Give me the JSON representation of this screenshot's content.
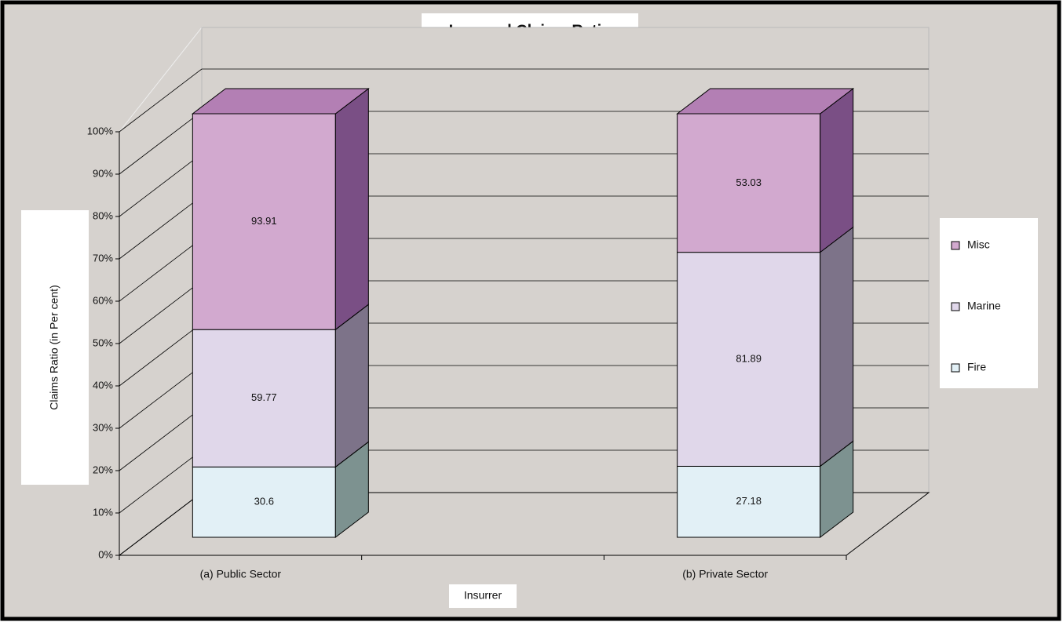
{
  "chart_data": {
    "type": "bar",
    "stacked_percent": true,
    "title": "Incurred Claims Ratio",
    "x_label": "Insurrer",
    "y_label": "Claims Ratio (in Per cent)",
    "categories": [
      "(a) Public Sector",
      null,
      "(b) Private Sector"
    ],
    "series": [
      {
        "name": "Fire",
        "color": "#e2f0f6",
        "side": "#7d9290",
        "values": [
          30.6,
          null,
          27.18
        ]
      },
      {
        "name": "Marine",
        "color": "#e0d7ea",
        "side": "#7d7389",
        "values": [
          59.77,
          null,
          81.89
        ]
      },
      {
        "name": "Misc",
        "color": "#d2a9cf",
        "side": "#7a4f85",
        "top": "#b37fb4",
        "values": [
          93.91,
          null,
          53.03
        ]
      }
    ],
    "ylim": [
      0,
      100
    ],
    "yticks": [
      {
        "value": 0,
        "label": "0%"
      },
      {
        "value": 10,
        "label": "10%"
      },
      {
        "value": 20,
        "label": "20%"
      },
      {
        "value": 30,
        "label": "30%"
      },
      {
        "value": 40,
        "label": "40%"
      },
      {
        "value": 50,
        "label": "50%"
      },
      {
        "value": 60,
        "label": "60%"
      },
      {
        "value": 70,
        "label": "70%"
      },
      {
        "value": 80,
        "label": "80%"
      },
      {
        "value": 90,
        "label": "90%"
      },
      {
        "value": 100,
        "label": "100%"
      }
    ],
    "grid": true,
    "legend": "right"
  }
}
